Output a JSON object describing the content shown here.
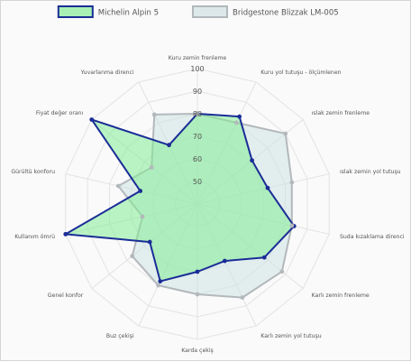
{
  "chart_data": {
    "type": "radar",
    "title": "",
    "axes": [
      "Kuru zemin frenleme",
      "Kuru yol tutuşu - ölçümlenen",
      "ıslak zemin frenleme",
      "ıslak zemin yol tutuşu",
      "Suda kızaklama direnci",
      "Karlı zemin frenleme",
      "Karlı zemin yol tutuşu",
      "Karda çekiş",
      "Buz çekişi",
      "Genel konfor",
      "Kullanım ömrü",
      "Gürültü konforu",
      "Fiyat değer oranı",
      "Yuvarlanma direnci"
    ],
    "rmin": 40,
    "rmax": 100,
    "ticks": [
      "50",
      "60",
      "70",
      "80",
      "90",
      "100"
    ],
    "legend_position": "top",
    "grid": true,
    "series": [
      {
        "name": "Michelin Alpin 5",
        "values": [
          80,
          83,
          71,
          72,
          84,
          78,
          68,
          70,
          78,
          67,
          100,
          66,
          100,
          69
        ],
        "stroke": "#1a2d96",
        "fill": "rgba(132, 236, 150, 0.55)",
        "legend_fill": "#a8f0b4"
      },
      {
        "name": "Bridgestone Blizzak LM-005",
        "values": [
          80,
          80,
          90,
          83,
          83,
          88,
          86,
          80,
          80,
          77,
          65,
          76,
          66,
          84
        ],
        "stroke": "#b3b8bb",
        "fill": "rgba(205, 225, 227, 0.55)",
        "legend_fill": "#dde8ea"
      }
    ],
    "grid_color": "#e3e3e3"
  }
}
